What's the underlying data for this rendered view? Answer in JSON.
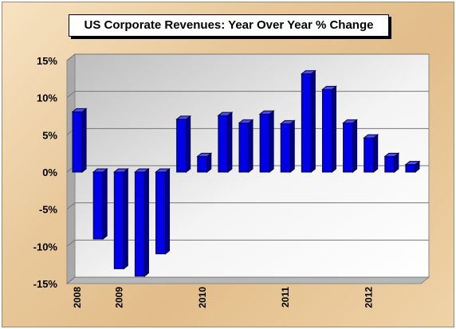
{
  "chart_data": {
    "type": "bar",
    "title": "US Corporate Revenues: Year Over Year % Change",
    "xlabel": "",
    "ylabel": "",
    "ylim": [
      -15,
      15
    ],
    "y_ticks": [
      15,
      10,
      5,
      0,
      -5,
      -10,
      -15
    ],
    "y_tick_labels": [
      "15%",
      "10%",
      "5%",
      "0%",
      "-5%",
      "-10%",
      "-15%"
    ],
    "x_tick_labels": [
      {
        "label": "2008",
        "index": 0
      },
      {
        "label": "2009",
        "index": 2
      },
      {
        "label": "2010",
        "index": 6
      },
      {
        "label": "2011",
        "index": 10
      },
      {
        "label": "2012",
        "index": 14
      }
    ],
    "values": [
      8.1,
      -9.0,
      -13.0,
      -14.0,
      -11.0,
      7.1,
      2.1,
      7.6,
      6.6,
      7.8,
      6.5,
      13.2,
      11.1,
      6.6,
      4.6,
      2.1,
      1.0
    ],
    "bar_color": "#0000ee",
    "grid": true,
    "legend": "none"
  }
}
